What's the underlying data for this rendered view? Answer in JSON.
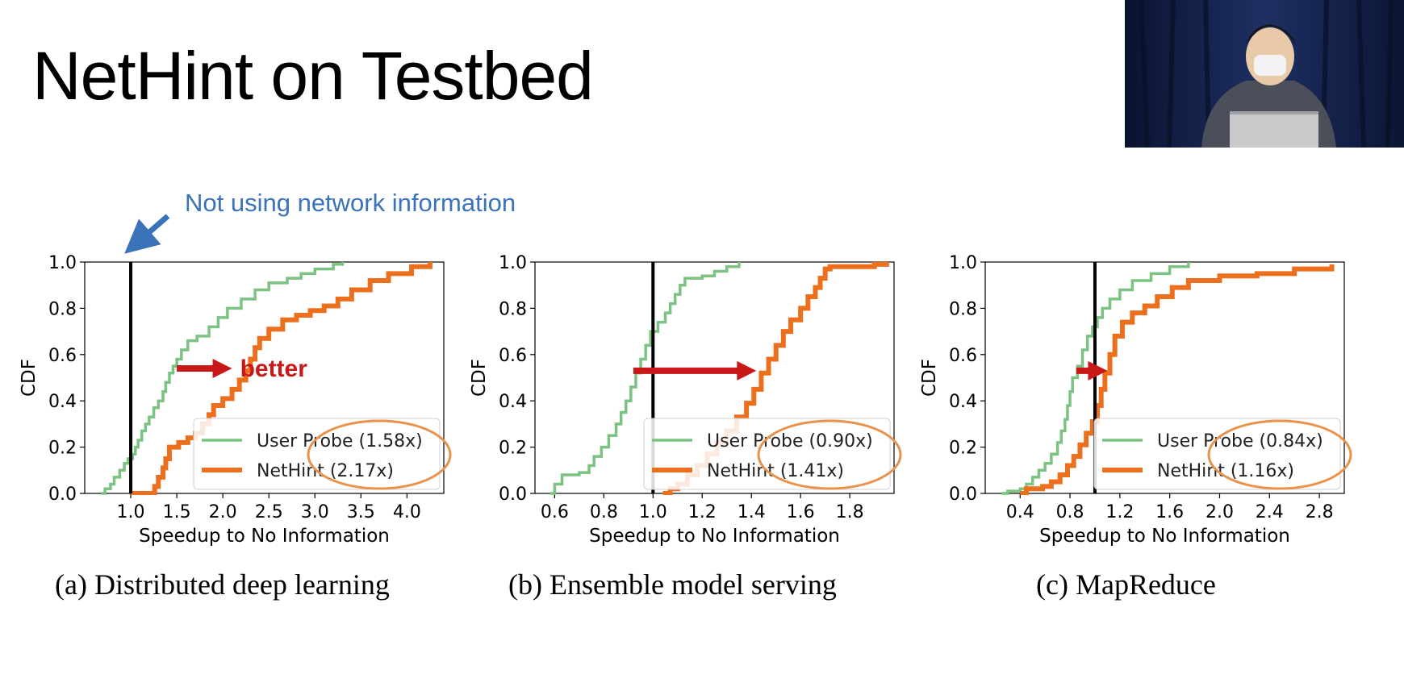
{
  "slide": {
    "title": "NetHint on Testbed",
    "callout": "Not using network information",
    "better_label": "better"
  },
  "colors": {
    "user_probe": "#7cc383",
    "nethint": "#ec6f1e",
    "baseline": "#000000",
    "arrow": "#c91818",
    "callout": "#3b73b9",
    "highlight_ellipse": "#e8924c"
  },
  "video": {
    "description_icon": "speaker-video-icon"
  },
  "chart_data": [
    {
      "type": "line",
      "subtitle": "(a) Distributed deep learning",
      "xlabel": "Speedup to No Information",
      "ylabel": "CDF",
      "xlim": [
        0.5,
        4.4
      ],
      "ylim": [
        0,
        1
      ],
      "xticks": [
        "1.0",
        "1.5",
        "2.0",
        "2.5",
        "3.0",
        "3.5",
        "4.0"
      ],
      "xtick_values": [
        1.0,
        1.5,
        2.0,
        2.5,
        3.0,
        3.5,
        4.0
      ],
      "yticks": [
        "0.0",
        "0.2",
        "0.4",
        "0.6",
        "0.8",
        "1.0"
      ],
      "baseline_x": 1.0,
      "legend_position": "lower right",
      "grid": false,
      "series": [
        {
          "name": "User Probe (1.58x)",
          "points": [
            [
              0.68,
              0.0
            ],
            [
              0.72,
              0.02
            ],
            [
              0.78,
              0.04
            ],
            [
              0.82,
              0.07
            ],
            [
              0.88,
              0.1
            ],
            [
              0.93,
              0.13
            ],
            [
              0.97,
              0.15
            ],
            [
              1.02,
              0.17
            ],
            [
              1.05,
              0.2
            ],
            [
              1.08,
              0.23
            ],
            [
              1.12,
              0.27
            ],
            [
              1.16,
              0.3
            ],
            [
              1.2,
              0.33
            ],
            [
              1.25,
              0.37
            ],
            [
              1.3,
              0.4
            ],
            [
              1.35,
              0.44
            ],
            [
              1.38,
              0.48
            ],
            [
              1.42,
              0.52
            ],
            [
              1.46,
              0.55
            ],
            [
              1.5,
              0.58
            ],
            [
              1.55,
              0.62
            ],
            [
              1.62,
              0.66
            ],
            [
              1.72,
              0.68
            ],
            [
              1.85,
              0.72
            ],
            [
              1.95,
              0.76
            ],
            [
              2.05,
              0.8
            ],
            [
              2.2,
              0.84
            ],
            [
              2.35,
              0.88
            ],
            [
              2.5,
              0.91
            ],
            [
              2.7,
              0.93
            ],
            [
              2.85,
              0.95
            ],
            [
              3.0,
              0.97
            ],
            [
              3.2,
              0.99
            ],
            [
              3.3,
              1.0
            ]
          ]
        },
        {
          "name": "NetHint (2.17x)",
          "points": [
            [
              1.0,
              0.0
            ],
            [
              1.22,
              0.0
            ],
            [
              1.26,
              0.03
            ],
            [
              1.3,
              0.07
            ],
            [
              1.35,
              0.11
            ],
            [
              1.38,
              0.15
            ],
            [
              1.42,
              0.2
            ],
            [
              1.52,
              0.22
            ],
            [
              1.62,
              0.24
            ],
            [
              1.7,
              0.26
            ],
            [
              1.78,
              0.3
            ],
            [
              1.85,
              0.34
            ],
            [
              1.9,
              0.38
            ],
            [
              2.0,
              0.41
            ],
            [
              2.1,
              0.45
            ],
            [
              2.18,
              0.49
            ],
            [
              2.25,
              0.53
            ],
            [
              2.3,
              0.58
            ],
            [
              2.35,
              0.63
            ],
            [
              2.4,
              0.67
            ],
            [
              2.5,
              0.71
            ],
            [
              2.65,
              0.75
            ],
            [
              2.8,
              0.77
            ],
            [
              2.95,
              0.79
            ],
            [
              3.1,
              0.81
            ],
            [
              3.25,
              0.84
            ],
            [
              3.4,
              0.88
            ],
            [
              3.6,
              0.92
            ],
            [
              3.8,
              0.95
            ],
            [
              4.05,
              0.98
            ],
            [
              4.25,
              1.0
            ]
          ]
        }
      ],
      "arrow": {
        "from_x": 1.5,
        "to_x": 2.1,
        "y": 0.54
      }
    },
    {
      "type": "line",
      "subtitle": "(b) Ensemble model serving",
      "xlabel": "Speedup to No Information",
      "ylabel": "CDF",
      "xlim": [
        0.52,
        1.98
      ],
      "ylim": [
        0,
        1
      ],
      "xticks": [
        "0.6",
        "0.8",
        "1.0",
        "1.2",
        "1.4",
        "1.6",
        "1.8"
      ],
      "xtick_values": [
        0.6,
        0.8,
        1.0,
        1.2,
        1.4,
        1.6,
        1.8
      ],
      "yticks": [
        "0.0",
        "0.2",
        "0.4",
        "0.6",
        "0.8",
        "1.0"
      ],
      "baseline_x": 1.0,
      "legend_position": "lower right",
      "grid": false,
      "series": [
        {
          "name": "User Probe (0.90x)",
          "points": [
            [
              0.58,
              0.0
            ],
            [
              0.6,
              0.04
            ],
            [
              0.63,
              0.08
            ],
            [
              0.7,
              0.09
            ],
            [
              0.74,
              0.12
            ],
            [
              0.76,
              0.16
            ],
            [
              0.79,
              0.2
            ],
            [
              0.82,
              0.25
            ],
            [
              0.85,
              0.3
            ],
            [
              0.87,
              0.35
            ],
            [
              0.89,
              0.4
            ],
            [
              0.91,
              0.46
            ],
            [
              0.93,
              0.52
            ],
            [
              0.95,
              0.58
            ],
            [
              0.97,
              0.64
            ],
            [
              0.99,
              0.7
            ],
            [
              1.02,
              0.74
            ],
            [
              1.05,
              0.78
            ],
            [
              1.07,
              0.82
            ],
            [
              1.09,
              0.86
            ],
            [
              1.11,
              0.9
            ],
            [
              1.13,
              0.93
            ],
            [
              1.2,
              0.94
            ],
            [
              1.25,
              0.96
            ],
            [
              1.3,
              0.98
            ],
            [
              1.35,
              1.0
            ]
          ]
        },
        {
          "name": "NetHint (1.41x)",
          "points": [
            [
              1.04,
              0.0
            ],
            [
              1.07,
              0.02
            ],
            [
              1.1,
              0.04
            ],
            [
              1.14,
              0.08
            ],
            [
              1.18,
              0.12
            ],
            [
              1.22,
              0.17
            ],
            [
              1.26,
              0.22
            ],
            [
              1.3,
              0.27
            ],
            [
              1.34,
              0.33
            ],
            [
              1.38,
              0.39
            ],
            [
              1.41,
              0.45
            ],
            [
              1.44,
              0.52
            ],
            [
              1.47,
              0.58
            ],
            [
              1.5,
              0.64
            ],
            [
              1.53,
              0.7
            ],
            [
              1.56,
              0.75
            ],
            [
              1.6,
              0.8
            ],
            [
              1.63,
              0.85
            ],
            [
              1.66,
              0.89
            ],
            [
              1.68,
              0.93
            ],
            [
              1.7,
              0.97
            ],
            [
              1.72,
              0.98
            ],
            [
              1.8,
              0.98
            ],
            [
              1.9,
              0.99
            ],
            [
              1.95,
              1.0
            ]
          ]
        }
      ],
      "arrow": {
        "from_x": 0.92,
        "to_x": 1.42,
        "y": 0.53
      }
    },
    {
      "type": "line",
      "subtitle": "(c) MapReduce",
      "xlabel": "Speedup to No Information",
      "ylabel": "CDF",
      "xlim": [
        0.12,
        3.0
      ],
      "ylim": [
        0,
        1
      ],
      "xticks": [
        "0.4",
        "0.8",
        "1.2",
        "1.6",
        "2.0",
        "2.4",
        "2.8"
      ],
      "xtick_values": [
        0.4,
        0.8,
        1.2,
        1.6,
        2.0,
        2.4,
        2.8
      ],
      "yticks": [
        "0.0",
        "0.2",
        "0.4",
        "0.6",
        "0.8",
        "1.0"
      ],
      "baseline_x": 1.0,
      "legend_position": "lower right",
      "grid": false,
      "series": [
        {
          "name": "User Probe (0.84x)",
          "points": [
            [
              0.25,
              0.0
            ],
            [
              0.3,
              0.01
            ],
            [
              0.4,
              0.02
            ],
            [
              0.45,
              0.04
            ],
            [
              0.5,
              0.07
            ],
            [
              0.55,
              0.1
            ],
            [
              0.6,
              0.13
            ],
            [
              0.65,
              0.17
            ],
            [
              0.7,
              0.22
            ],
            [
              0.73,
              0.27
            ],
            [
              0.76,
              0.32
            ],
            [
              0.78,
              0.38
            ],
            [
              0.8,
              0.44
            ],
            [
              0.82,
              0.5
            ],
            [
              0.86,
              0.55
            ],
            [
              0.9,
              0.62
            ],
            [
              0.94,
              0.68
            ],
            [
              0.98,
              0.72
            ],
            [
              1.02,
              0.76
            ],
            [
              1.06,
              0.8
            ],
            [
              1.12,
              0.84
            ],
            [
              1.2,
              0.88
            ],
            [
              1.3,
              0.92
            ],
            [
              1.45,
              0.95
            ],
            [
              1.6,
              0.98
            ],
            [
              1.75,
              1.0
            ]
          ]
        },
        {
          "name": "NetHint (1.16x)",
          "points": [
            [
              0.4,
              0.0
            ],
            [
              0.45,
              0.02
            ],
            [
              0.58,
              0.03
            ],
            [
              0.65,
              0.05
            ],
            [
              0.72,
              0.08
            ],
            [
              0.78,
              0.12
            ],
            [
              0.83,
              0.16
            ],
            [
              0.88,
              0.21
            ],
            [
              0.93,
              0.26
            ],
            [
              0.98,
              0.31
            ],
            [
              1.02,
              0.38
            ],
            [
              1.05,
              0.45
            ],
            [
              1.08,
              0.52
            ],
            [
              1.12,
              0.6
            ],
            [
              1.16,
              0.68
            ],
            [
              1.22,
              0.74
            ],
            [
              1.3,
              0.78
            ],
            [
              1.4,
              0.81
            ],
            [
              1.5,
              0.85
            ],
            [
              1.62,
              0.89
            ],
            [
              1.75,
              0.92
            ],
            [
              2.0,
              0.94
            ],
            [
              2.3,
              0.95
            ],
            [
              2.6,
              0.97
            ],
            [
              2.9,
              0.99
            ]
          ]
        }
      ],
      "arrow": {
        "from_x": 0.85,
        "to_x": 1.1,
        "y": 0.53
      }
    }
  ]
}
